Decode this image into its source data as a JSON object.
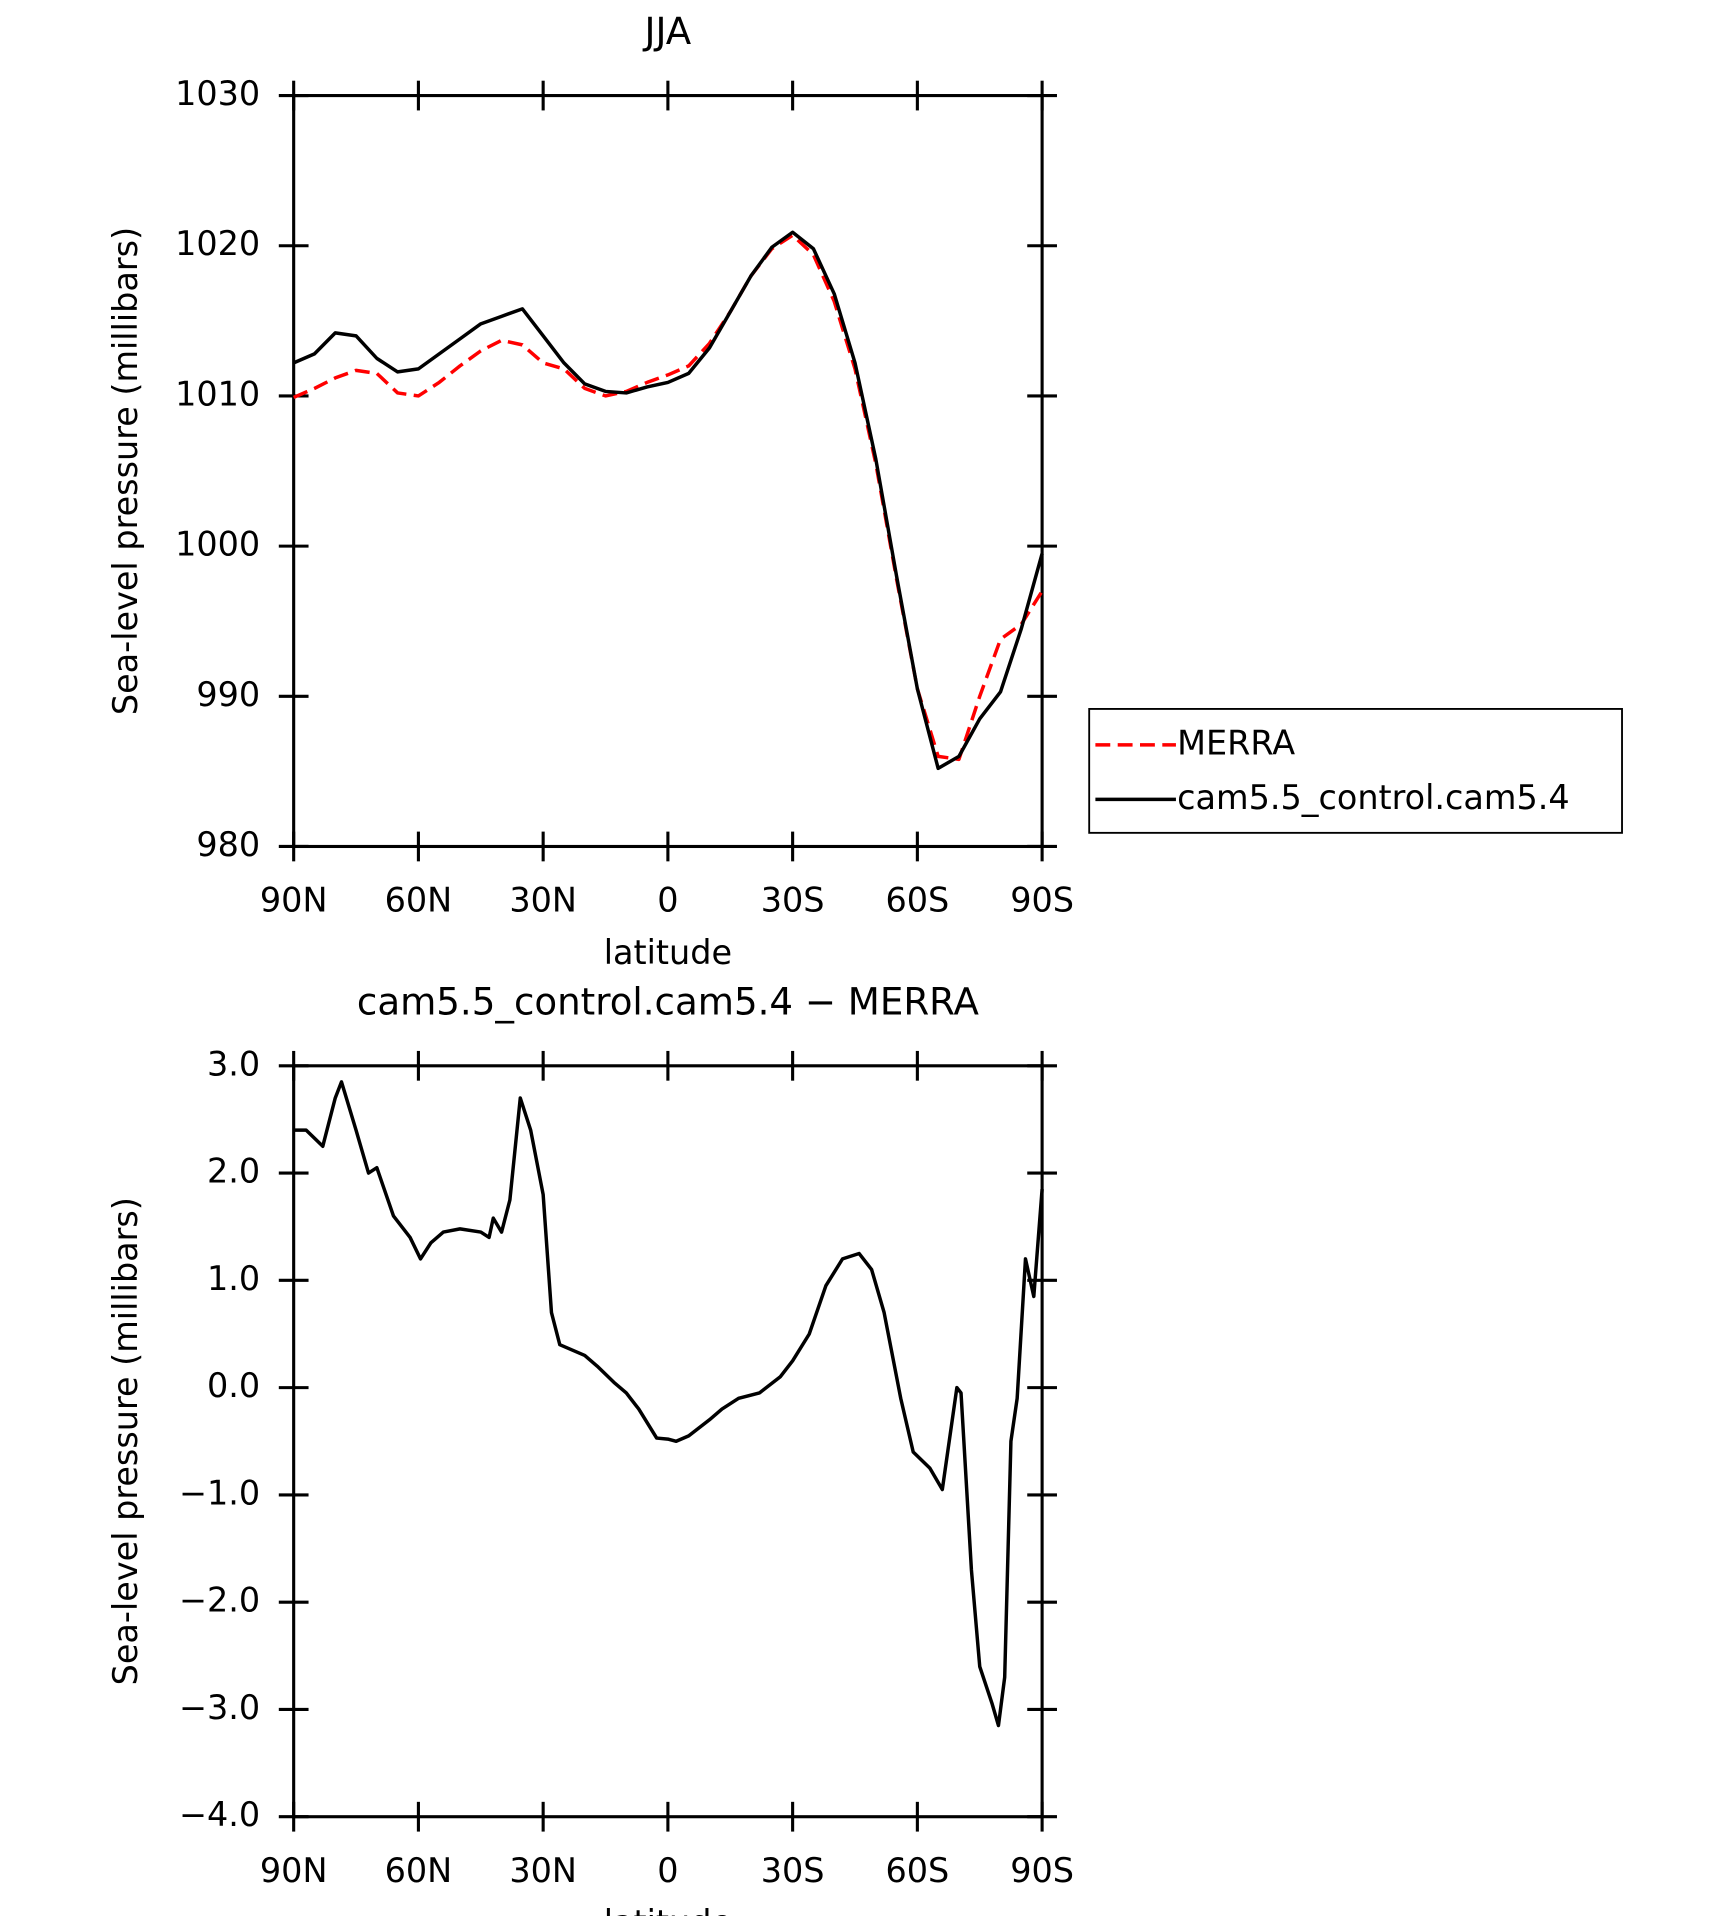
{
  "chart_data": [
    {
      "type": "line",
      "title": "JJA",
      "x_label": "latitude",
      "y_label": "Sea-level pressure (millibars)",
      "x": [
        90,
        85,
        80,
        75,
        70,
        65,
        60,
        55,
        50,
        45,
        40,
        35,
        30,
        25,
        20,
        15,
        10,
        5,
        0,
        -5,
        -10,
        -15,
        -20,
        -25,
        -30,
        -35,
        -40,
        -45,
        -50,
        -55,
        -60,
        -65,
        -70,
        -75,
        -80,
        -85,
        -90
      ],
      "series": [
        {
          "name": "MERRA",
          "color": "#ff0000",
          "dash": true,
          "values": [
            1009.9,
            1010.5,
            1011.2,
            1011.7,
            1011.5,
            1010.2,
            1010.0,
            1010.9,
            1012.0,
            1013.0,
            1013.7,
            1013.4,
            1012.2,
            1011.8,
            1010.5,
            1010.0,
            1010.3,
            1010.9,
            1011.4,
            1012.0,
            1013.5,
            1015.6,
            1018.0,
            1019.8,
            1020.7,
            1019.4,
            1016.3,
            1011.8,
            1005.5,
            997.8,
            990.5,
            986.0,
            985.8,
            990.0,
            993.8,
            994.8,
            997.0
          ]
        },
        {
          "name": "cam5.5_control.cam5.4",
          "color": "#000000",
          "dash": false,
          "values": [
            1012.2,
            1012.8,
            1014.2,
            1014.0,
            1012.5,
            1011.6,
            1011.8,
            1012.8,
            1013.8,
            1014.8,
            1015.3,
            1015.8,
            1014.0,
            1012.2,
            1010.8,
            1010.3,
            1010.2,
            1010.6,
            1010.9,
            1011.5,
            1013.2,
            1015.6,
            1018.0,
            1019.9,
            1020.9,
            1019.8,
            1016.8,
            1012.2,
            1005.8,
            998.0,
            990.5,
            985.2,
            986.0,
            988.5,
            990.3,
            994.5,
            999.5
          ]
        }
      ],
      "xlim": [
        90,
        -90
      ],
      "xticks": [
        {
          "value": 90,
          "label": "90N"
        },
        {
          "value": 60,
          "label": "60N"
        },
        {
          "value": 30,
          "label": "30N"
        },
        0,
        {
          "value": -30,
          "label": "30S"
        },
        {
          "value": -60,
          "label": "60S"
        },
        {
          "value": -90,
          "label": "90S"
        }
      ],
      "ylim": [
        980,
        1030
      ],
      "yticks": [
        980,
        990,
        1000,
        1010,
        1020,
        1030
      ],
      "legend": "outside-right"
    },
    {
      "type": "line",
      "title": "cam5.5_control.cam5.4 − MERRA",
      "x_label": "latitude",
      "y_label": "Sea-level pressure (millibars)",
      "x": [
        90,
        87,
        83,
        80,
        78.5,
        75,
        72,
        70,
        66,
        62,
        59.5,
        57,
        54,
        50,
        45,
        43,
        42,
        40,
        38,
        35.5,
        33,
        30,
        28,
        26,
        23,
        20,
        17,
        13,
        10,
        7,
        2.7,
        0,
        -2,
        -5,
        -10,
        -13,
        -17,
        -22,
        -27,
        -30,
        -34,
        -38,
        -42,
        -46,
        -49,
        -52,
        -56,
        -59,
        -63,
        -66,
        -69.5,
        -70.5,
        -73,
        -75,
        -78,
        -79.5,
        -81,
        -82.5,
        -84,
        -86,
        -88,
        -90
      ],
      "series": [
        {
          "name": "cam5.5_control.cam5.4",
          "color": "#000000",
          "dash": false,
          "values": [
            2.4,
            2.4,
            2.25,
            2.7,
            2.85,
            2.4,
            2.0,
            2.05,
            1.6,
            1.4,
            1.2,
            1.35,
            1.45,
            1.48,
            1.45,
            1.4,
            1.58,
            1.45,
            1.75,
            2.7,
            2.4,
            1.8,
            0.7,
            0.4,
            0.35,
            0.3,
            0.2,
            0.05,
            -0.05,
            -0.2,
            -0.47,
            -0.48,
            -0.5,
            -0.45,
            -0.3,
            -0.2,
            -0.1,
            -0.05,
            0.1,
            0.25,
            0.5,
            0.95,
            1.2,
            1.25,
            1.1,
            0.7,
            -0.1,
            -0.6,
            -0.75,
            -0.95,
            0.0,
            -0.05,
            -1.7,
            -2.6,
            -2.95,
            -3.15,
            -2.7,
            -0.5,
            -0.1,
            1.2,
            0.85,
            1.85
          ]
        }
      ],
      "xlim": [
        90,
        -90
      ],
      "xticks": [
        {
          "value": 90,
          "label": "90N"
        },
        {
          "value": 60,
          "label": "60N"
        },
        {
          "value": 30,
          "label": "30N"
        },
        0,
        {
          "value": -30,
          "label": "30S"
        },
        {
          "value": -60,
          "label": "60S"
        },
        {
          "value": -90,
          "label": "90S"
        }
      ],
      "ylim": [
        -4,
        3
      ],
      "yticks": [
        {
          "value": -4,
          "label": "−4.0"
        },
        {
          "value": -3,
          "label": "−3.0"
        },
        {
          "value": -2,
          "label": "−2.0"
        },
        {
          "value": -1,
          "label": "−1.0"
        },
        {
          "value": 0,
          "label": "0.0"
        },
        {
          "value": 1,
          "label": "1.0"
        },
        {
          "value": 2,
          "label": "2.0"
        },
        {
          "value": 3,
          "label": "3.0"
        }
      ]
    }
  ]
}
